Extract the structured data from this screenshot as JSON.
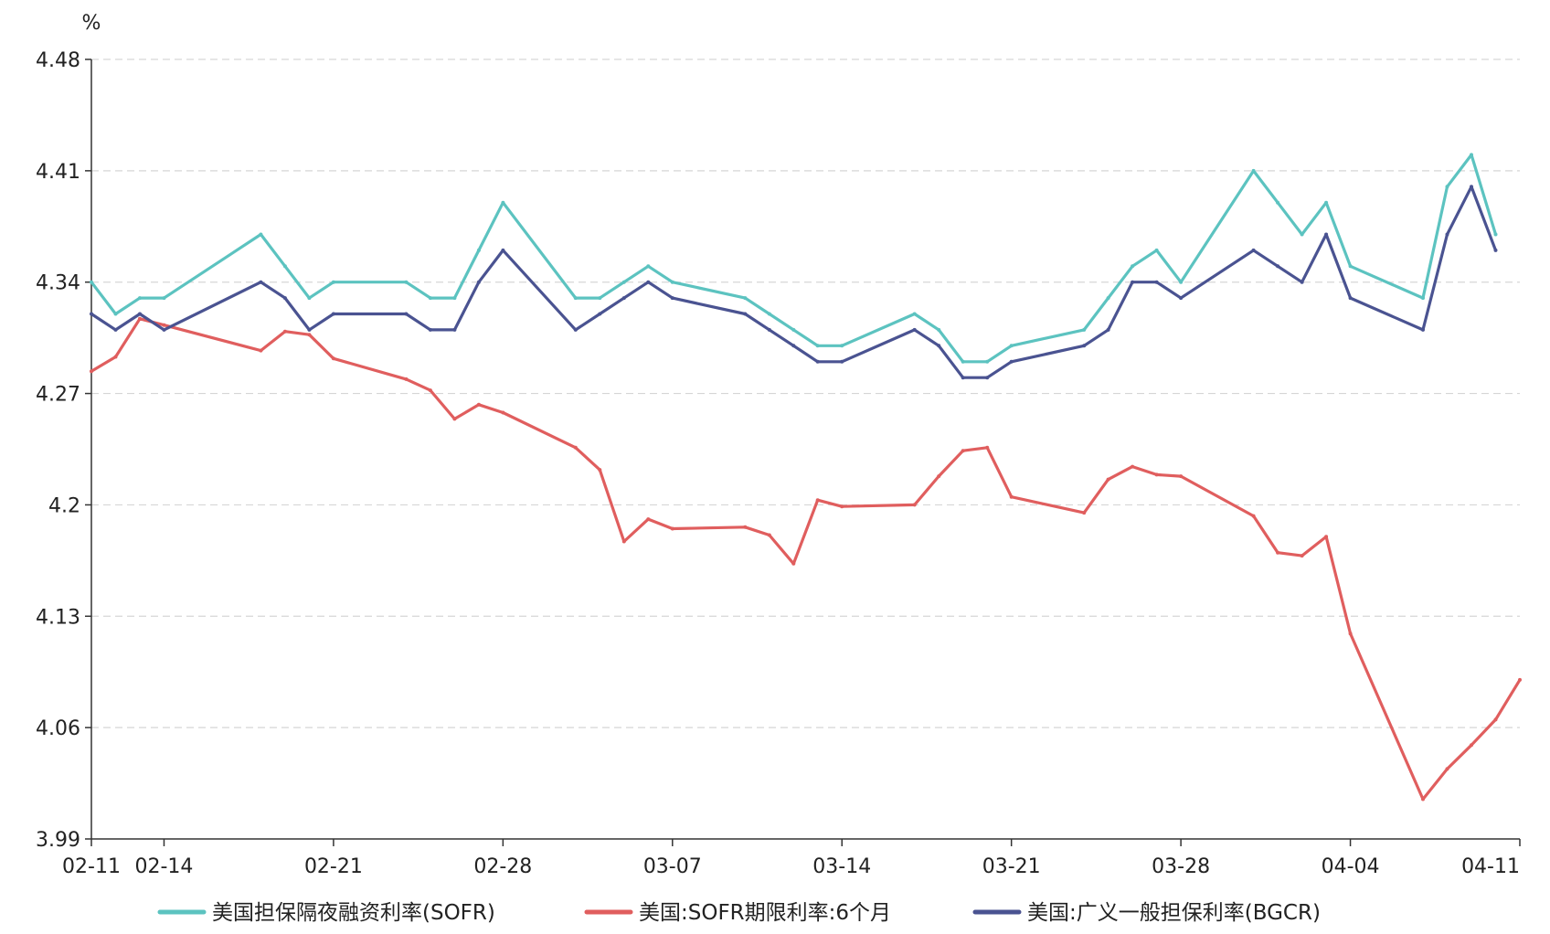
{
  "chart_data": {
    "type": "line",
    "unit": "%",
    "ylim": [
      3.99,
      4.48
    ],
    "yticks": [
      "4.48",
      "4.41",
      "4.34",
      "4.27",
      "4.2",
      "4.13",
      "4.06",
      "3.99"
    ],
    "xlim": [
      "2025-02-11",
      "2025-04-11"
    ],
    "xticks": [
      "02-11",
      "02-14",
      "02-21",
      "02-28",
      "03-07",
      "03-14",
      "03-21",
      "03-28",
      "04-04",
      "04-11"
    ],
    "grid": "horizontal dashed",
    "legend_position": "bottom",
    "series": [
      {
        "name": "美国担保隔夜融资利率(SOFR)",
        "color": "#5cc3c0",
        "x": [
          "2025-02-11",
          "2025-02-12",
          "2025-02-13",
          "2025-02-14",
          "2025-02-18",
          "2025-02-19",
          "2025-02-20",
          "2025-02-21",
          "2025-02-24",
          "2025-02-25",
          "2025-02-26",
          "2025-02-27",
          "2025-02-28",
          "2025-03-03",
          "2025-03-04",
          "2025-03-05",
          "2025-03-06",
          "2025-03-07",
          "2025-03-10",
          "2025-03-11",
          "2025-03-12",
          "2025-03-13",
          "2025-03-14",
          "2025-03-17",
          "2025-03-18",
          "2025-03-19",
          "2025-03-20",
          "2025-03-21",
          "2025-03-24",
          "2025-03-25",
          "2025-03-26",
          "2025-03-27",
          "2025-03-28",
          "2025-03-31",
          "2025-04-01",
          "2025-04-02",
          "2025-04-03",
          "2025-04-04",
          "2025-04-07",
          "2025-04-08",
          "2025-04-09",
          "2025-04-10"
        ],
        "values": [
          4.34,
          4.32,
          4.33,
          4.33,
          4.37,
          4.35,
          4.33,
          4.34,
          4.34,
          4.33,
          4.33,
          4.36,
          4.39,
          4.33,
          4.33,
          4.34,
          4.35,
          4.34,
          4.33,
          4.32,
          4.31,
          4.3,
          4.3,
          4.32,
          4.31,
          4.29,
          4.29,
          4.3,
          4.31,
          4.33,
          4.35,
          4.36,
          4.34,
          4.41,
          4.39,
          4.37,
          4.39,
          4.35,
          4.33,
          4.4,
          4.42,
          4.37
        ]
      },
      {
        "name": "美国:SOFR期限利率:6个月",
        "color": "#e05e5e",
        "x": [
          "2025-02-11",
          "2025-02-12",
          "2025-02-13",
          "2025-02-14",
          "2025-02-18",
          "2025-02-19",
          "2025-02-20",
          "2025-02-21",
          "2025-02-24",
          "2025-02-25",
          "2025-02-26",
          "2025-02-27",
          "2025-02-28",
          "2025-03-03",
          "2025-03-04",
          "2025-03-05",
          "2025-03-06",
          "2025-03-07",
          "2025-03-10",
          "2025-03-11",
          "2025-03-12",
          "2025-03-13",
          "2025-03-14",
          "2025-03-17",
          "2025-03-18",
          "2025-03-19",
          "2025-03-20",
          "2025-03-21",
          "2025-03-24",
          "2025-03-25",
          "2025-03-26",
          "2025-03-27",
          "2025-03-28",
          "2025-03-31",
          "2025-04-01",
          "2025-04-02",
          "2025-04-03",
          "2025-04-04",
          "2025-04-07",
          "2025-04-08",
          "2025-04-09",
          "2025-04-10",
          "2025-04-11"
        ],
        "values": [
          4.284,
          4.293,
          4.317,
          4.313,
          4.297,
          4.309,
          4.307,
          4.292,
          4.279,
          4.272,
          4.254,
          4.263,
          4.258,
          4.236,
          4.222,
          4.177,
          4.191,
          4.185,
          4.186,
          4.181,
          4.163,
          4.203,
          4.199,
          4.2,
          4.218,
          4.234,
          4.236,
          4.205,
          4.195,
          4.216,
          4.224,
          4.219,
          4.218,
          4.193,
          4.17,
          4.168,
          4.18,
          4.119,
          4.015,
          4.034,
          4.049,
          4.065,
          4.09
        ]
      },
      {
        "name": "美国:广义一般担保利率(BGCR)",
        "color": "#4a5391",
        "x": [
          "2025-02-11",
          "2025-02-12",
          "2025-02-13",
          "2025-02-14",
          "2025-02-18",
          "2025-02-19",
          "2025-02-20",
          "2025-02-21",
          "2025-02-24",
          "2025-02-25",
          "2025-02-26",
          "2025-02-27",
          "2025-02-28",
          "2025-03-03",
          "2025-03-04",
          "2025-03-05",
          "2025-03-06",
          "2025-03-07",
          "2025-03-10",
          "2025-03-11",
          "2025-03-12",
          "2025-03-13",
          "2025-03-14",
          "2025-03-17",
          "2025-03-18",
          "2025-03-19",
          "2025-03-20",
          "2025-03-21",
          "2025-03-24",
          "2025-03-25",
          "2025-03-26",
          "2025-03-27",
          "2025-03-28",
          "2025-03-31",
          "2025-04-01",
          "2025-04-02",
          "2025-04-03",
          "2025-04-04",
          "2025-04-07",
          "2025-04-08",
          "2025-04-09",
          "2025-04-10"
        ],
        "values": [
          4.32,
          4.31,
          4.32,
          4.31,
          4.34,
          4.33,
          4.31,
          4.32,
          4.32,
          4.31,
          4.31,
          4.34,
          4.36,
          4.31,
          4.32,
          4.33,
          4.34,
          4.33,
          4.32,
          4.31,
          4.3,
          4.29,
          4.29,
          4.31,
          4.3,
          4.28,
          4.28,
          4.29,
          4.3,
          4.31,
          4.34,
          4.34,
          4.33,
          4.36,
          4.35,
          4.34,
          4.37,
          4.33,
          4.31,
          4.37,
          4.4,
          4.36
        ]
      }
    ]
  }
}
